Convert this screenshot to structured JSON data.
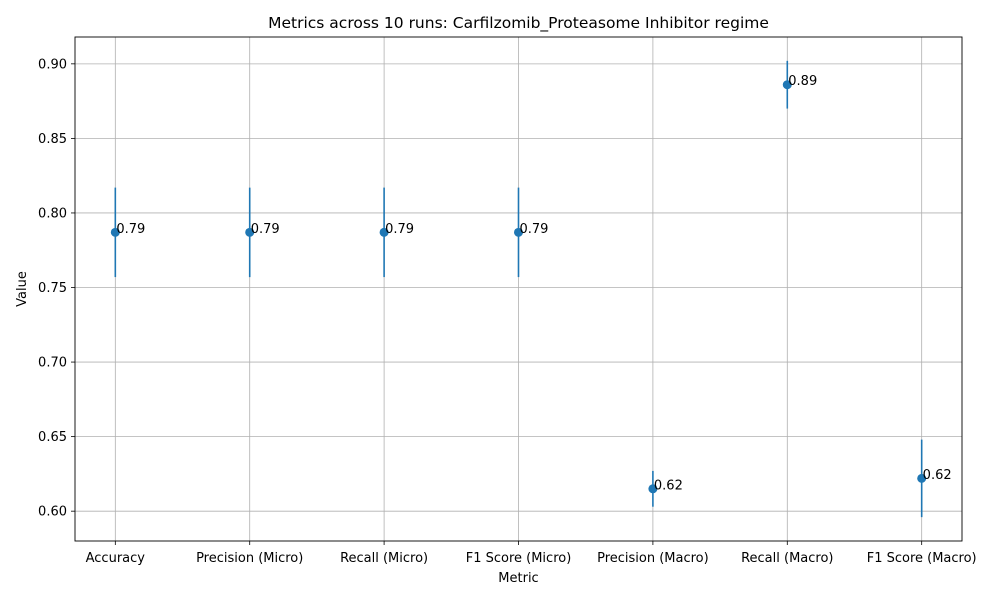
{
  "chart_data": {
    "type": "scatter",
    "title": "Metrics across 10 runs: Carfilzomib_Proteasome Inhibitor regime",
    "xlabel": "Metric",
    "ylabel": "Value",
    "categories": [
      "Accuracy",
      "Precision (Micro)",
      "Recall (Micro)",
      "F1 Score (Micro)",
      "Precision (Macro)",
      "Recall (Macro)",
      "F1 Score (Macro)"
    ],
    "values": [
      0.787,
      0.787,
      0.787,
      0.787,
      0.615,
      0.886,
      0.622
    ],
    "errors": [
      0.03,
      0.03,
      0.03,
      0.03,
      0.012,
      0.016,
      0.026
    ],
    "value_labels": [
      "0.79",
      "0.79",
      "0.79",
      "0.79",
      "0.62",
      "0.89",
      "0.62"
    ],
    "ylim": [
      0.58,
      0.918
    ],
    "yticks": [
      0.6,
      0.65,
      0.7,
      0.75,
      0.8,
      0.85,
      0.9
    ],
    "ytick_labels": [
      "0.60",
      "0.65",
      "0.70",
      "0.75",
      "0.80",
      "0.85",
      "0.90"
    ],
    "grid": true,
    "color": "#1f77b4"
  }
}
